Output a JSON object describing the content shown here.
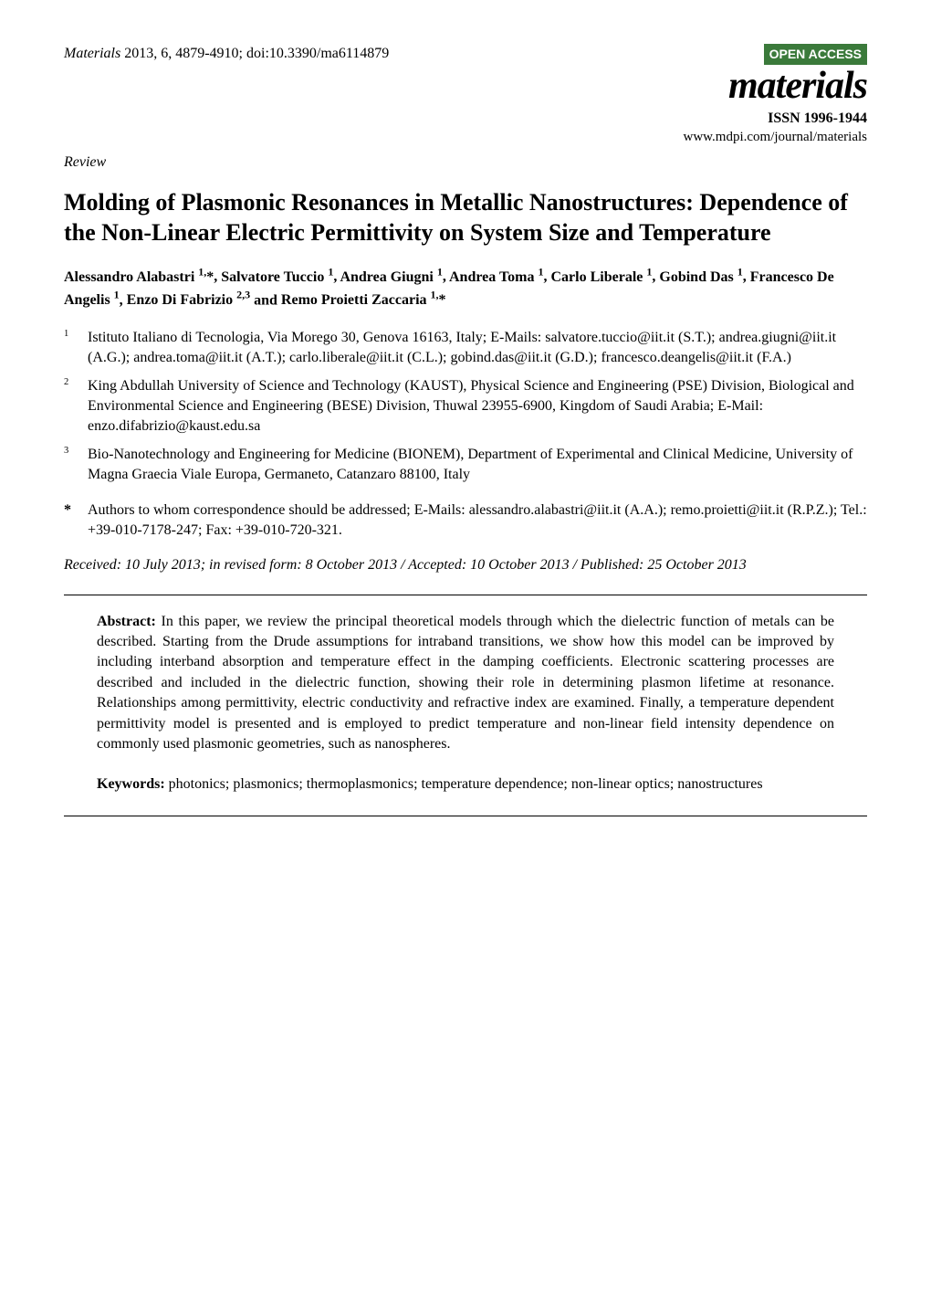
{
  "header": {
    "citation": "Materials 2013, 6, 4879-4910; doi:10.3390/ma6114879",
    "citation_journal_italic": "Materials",
    "citation_rest": " 2013, 6, 4879-4910; doi:10.3390/ma6114879",
    "open_access_label": "OPEN ACCESS",
    "journal_name": "materials",
    "issn": "ISSN 1996-1944",
    "url": "www.mdpi.com/journal/materials",
    "badge_bg": "#3b7a3b",
    "badge_fg": "#ffffff"
  },
  "article_type": "Review",
  "title": "Molding of Plasmonic Resonances in Metallic Nanostructures: Dependence of the Non-Linear Electric Permittivity on System Size and Temperature",
  "authors_line": "Alessandro Alabastri 1,*, Salvatore Tuccio 1, Andrea Giugni 1, Andrea Toma 1, Carlo Liberale 1, Gobind Das 1, Francesco De Angelis 1, Enzo Di Fabrizio 2,3 and Remo Proietti Zaccaria 1,*",
  "authors": [
    {
      "name": "Alessandro Alabastri",
      "affil": "1,",
      "mark": "*"
    },
    {
      "name": "Salvatore Tuccio",
      "affil": "1",
      "mark": ""
    },
    {
      "name": "Andrea Giugni",
      "affil": "1",
      "mark": ""
    },
    {
      "name": "Andrea Toma",
      "affil": "1",
      "mark": ""
    },
    {
      "name": "Carlo Liberale",
      "affil": "1",
      "mark": ""
    },
    {
      "name": "Gobind Das",
      "affil": "1",
      "mark": ""
    },
    {
      "name": "Francesco De Angelis",
      "affil": "1",
      "mark": ""
    },
    {
      "name": "Enzo Di Fabrizio",
      "affil": "2,3",
      "mark": ""
    },
    {
      "name": "Remo Proietti Zaccaria",
      "affil": "1,",
      "mark": "*"
    }
  ],
  "affiliations": [
    {
      "num": "1",
      "text": "Istituto Italiano di Tecnologia, Via Morego 30, Genova 16163, Italy; E-Mails: salvatore.tuccio@iit.it (S.T.); andrea.giugni@iit.it (A.G.); andrea.toma@iit.it (A.T.); carlo.liberale@iit.it (C.L.); gobind.das@iit.it (G.D.); francesco.deangelis@iit.it (F.A.)"
    },
    {
      "num": "2",
      "text": "King Abdullah University of Science and Technology (KAUST), Physical Science and Engineering (PSE) Division, Biological and Environmental Science and Engineering (BESE) Division, Thuwal 23955-6900, Kingdom of Saudi Arabia; E-Mail: enzo.difabrizio@kaust.edu.sa"
    },
    {
      "num": "3",
      "text": "Bio-Nanotechnology and Engineering for Medicine (BIONEM), Department of Experimental and Clinical Medicine, University of Magna Graecia Viale Europa, Germaneto, Catanzaro 88100, Italy"
    }
  ],
  "correspondence": {
    "mark": "*",
    "text": "Authors to whom correspondence should be addressed; E-Mails: alessandro.alabastri@iit.it (A.A.); remo.proietti@iit.it (R.P.Z.); Tel.: +39-010-7178-247; Fax: +39-010-720-321."
  },
  "dates": "Received: 10 July 2013; in revised form: 8 October 2013 / Accepted: 10 October 2013 / Published: 25 October 2013",
  "abstract": {
    "label": "Abstract:",
    "text": " In this paper, we review the principal theoretical models through which the dielectric function of metals can be described. Starting from the Drude assumptions for intraband transitions, we show how this model can be improved by including interband absorption and temperature effect in the damping coefficients. Electronic scattering processes are described and included in the dielectric function, showing their role in determining plasmon lifetime at resonance. Relationships among permittivity, electric conductivity and refractive index are examined. Finally, a temperature dependent permittivity model is presented and is employed to predict temperature and non-linear field intensity dependence on commonly used plasmonic geometries, such as nanospheres."
  },
  "keywords": {
    "label": "Keywords:",
    "text": " photonics; plasmonics; thermoplasmonics; temperature dependence; non-linear optics; nanostructures"
  },
  "colors": {
    "text": "#000000",
    "background": "#ffffff",
    "rule": "#000000"
  },
  "fonts": {
    "body_family": "Times New Roman",
    "body_size_pt": 12,
    "title_size_pt": 20,
    "journal_name_size_pt": 32
  }
}
